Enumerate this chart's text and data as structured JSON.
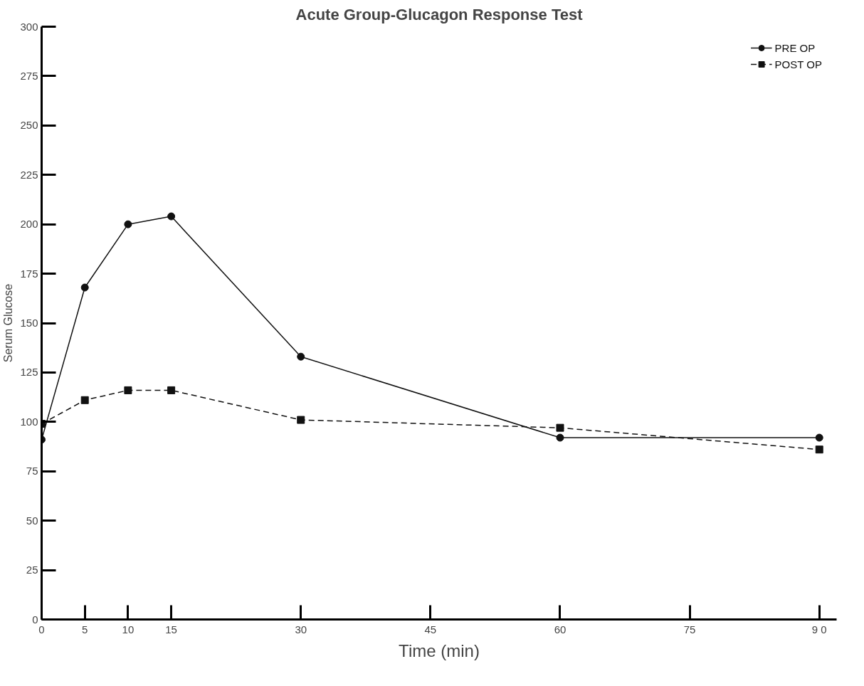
{
  "chart_data": {
    "type": "line",
    "title": "Acute Group-Glucagon Response Test",
    "xlabel": "Time (min)",
    "ylabel": "Serum Glucose",
    "x": [
      0,
      5,
      10,
      15,
      30,
      60,
      90
    ],
    "series": [
      {
        "name": "PRE OP",
        "color": "#111111",
        "values": [
          91,
          168,
          200,
          204,
          133,
          92,
          92
        ],
        "marker": "circle",
        "line_style": "solid"
      },
      {
        "name": "POST OP",
        "color": "#111111",
        "values": [
          99,
          111,
          116,
          116,
          101,
          97,
          86
        ],
        "marker": "square",
        "line_style": "dashed"
      }
    ],
    "xlim": [
      0,
      92
    ],
    "xticks": [
      0,
      5,
      10,
      15,
      30,
      45,
      60,
      75,
      {
        "value": 90,
        "label": "9 0"
      }
    ],
    "ylim": [
      0,
      300
    ],
    "yticks": [
      0,
      25,
      50,
      75,
      100,
      125,
      150,
      175,
      200,
      225,
      250,
      275,
      300
    ],
    "grid": false,
    "legend": "top right"
  }
}
